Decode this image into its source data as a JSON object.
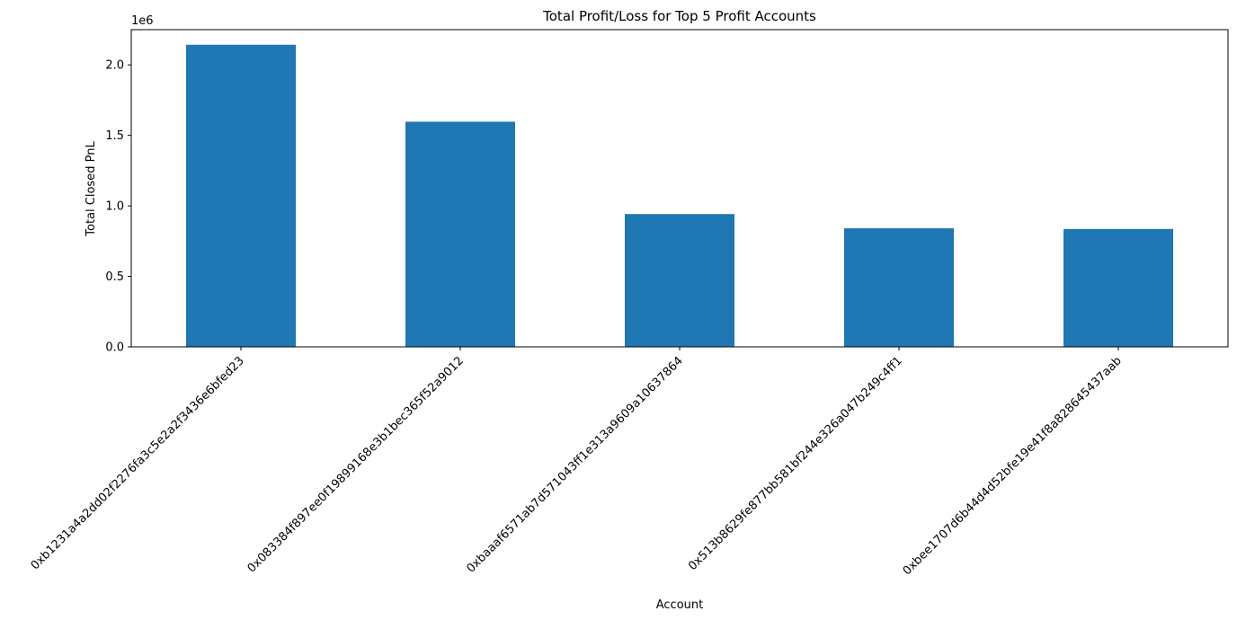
{
  "chart_data": {
    "type": "bar",
    "title": "Total Profit/Loss for Top 5 Profit Accounts",
    "xlabel": "Account",
    "ylabel": "Total Closed PnL",
    "y_offset_label": "1e6",
    "y_scale": 1000000,
    "ylim": [
      0,
      2250000
    ],
    "yticks": [
      0,
      500000,
      1000000,
      1500000,
      2000000
    ],
    "ytick_labels": [
      "0.0",
      "0.5",
      "1.0",
      "1.5",
      "2.0"
    ],
    "categories": [
      "0xb1231a4a2dd02f2276fa3c5e2a2f3436e6bfed23",
      "0x083384f897ee0f19899168e3b1bec365f52a9012",
      "0xbaaaf6571ab7d571043ff1e313a9609a10637864",
      "0x513b8629fe877bb581bf244e326a047b249c4ff1",
      "0xbee1707d6b44d4d52bfe19e41f8a828645437aab"
    ],
    "values": [
      2143000,
      1597000,
      942000,
      841000,
      836000
    ],
    "bar_color": "#1f77b4",
    "grid": false,
    "legend": "none"
  }
}
